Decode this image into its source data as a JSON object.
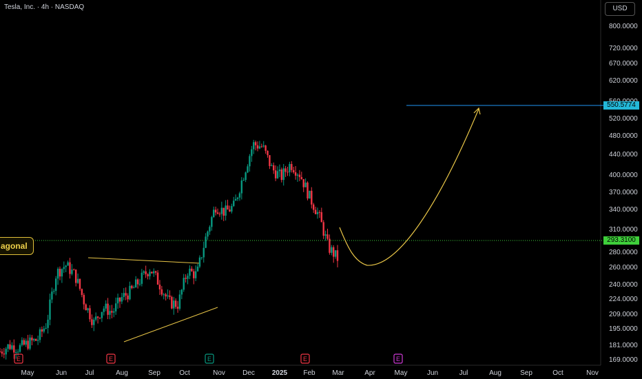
{
  "header": {
    "title": "Tesla, Inc. · 4h · NASDAQ",
    "currency_button": "USD"
  },
  "annotation_tag": "agonal",
  "price_labels": {
    "target": "550.5774",
    "current": "293.3100"
  },
  "colors": {
    "up": "#089981",
    "down": "#f23645",
    "annotation": "#e8c547",
    "target_line": "#2196f3",
    "current_line": "#3ecf3a",
    "text": "#d1d4dc"
  },
  "chart_data": {
    "type": "candlestick",
    "title": "Tesla, Inc. · 4h · NASDAQ",
    "x_tick_labels": [
      "May",
      "Jun",
      "Jul",
      "Aug",
      "Sep",
      "Oct",
      "Nov",
      "Dec",
      "2025",
      "Feb",
      "Mar",
      "Apr",
      "May",
      "Jun",
      "Jul",
      "Aug",
      "Sep",
      "Oct",
      "Nov"
    ],
    "y_tick_labels": [
      "800.0000",
      "720.0000",
      "670.0000",
      "620.0000",
      "560.0000",
      "520.0000",
      "480.0000",
      "440.0000",
      "400.0000",
      "370.0000",
      "340.0000",
      "310.0000",
      "280.0000",
      "260.0000",
      "240.0000",
      "224.0000",
      "209.0000",
      "195.0000",
      "181.0000",
      "169.0000"
    ],
    "y_scale": "log",
    "approx_close_series": [
      {
        "x": "Apr",
        "y": 175
      },
      {
        "x": "May",
        "y": 180
      },
      {
        "x": "May",
        "y": 178
      },
      {
        "x": "Jun",
        "y": 182
      },
      {
        "x": "Jun",
        "y": 185
      },
      {
        "x": "Jun",
        "y": 200
      },
      {
        "x": "Jul",
        "y": 252
      },
      {
        "x": "Jul",
        "y": 262
      },
      {
        "x": "Jul",
        "y": 250
      },
      {
        "x": "Jul",
        "y": 220
      },
      {
        "x": "Aug",
        "y": 200
      },
      {
        "x": "Aug",
        "y": 215
      },
      {
        "x": "Aug",
        "y": 210
      },
      {
        "x": "Sep",
        "y": 225
      },
      {
        "x": "Sep",
        "y": 232
      },
      {
        "x": "Sep",
        "y": 245
      },
      {
        "x": "Oct",
        "y": 258
      },
      {
        "x": "Oct",
        "y": 240
      },
      {
        "x": "Oct",
        "y": 220
      },
      {
        "x": "Oct",
        "y": 218
      },
      {
        "x": "Oct",
        "y": 255
      },
      {
        "x": "Nov",
        "y": 250
      },
      {
        "x": "Nov",
        "y": 300
      },
      {
        "x": "Nov",
        "y": 345
      },
      {
        "x": "Nov",
        "y": 335
      },
      {
        "x": "Dec",
        "y": 345
      },
      {
        "x": "Dec",
        "y": 400
      },
      {
        "x": "Dec",
        "y": 460
      },
      {
        "x": "Dec",
        "y": 455
      },
      {
        "x": "2025",
        "y": 410
      },
      {
        "x": "2025",
        "y": 395
      },
      {
        "x": "2025",
        "y": 420
      },
      {
        "x": "Feb",
        "y": 400
      },
      {
        "x": "Feb",
        "y": 360
      },
      {
        "x": "Feb",
        "y": 330
      },
      {
        "x": "Mar",
        "y": 285
      },
      {
        "x": "Mar",
        "y": 270
      }
    ],
    "earnings_markers": [
      {
        "x": "Apr",
        "label": "E"
      },
      {
        "x": "Jul",
        "label": "E"
      },
      {
        "x": "Oct",
        "label": "E"
      },
      {
        "x": "Jan",
        "label": "E"
      },
      {
        "x": "Apr",
        "label": "E"
      }
    ],
    "horizontal_lines": [
      {
        "name": "target",
        "value": 550.5774
      },
      {
        "name": "current",
        "value": 293.31
      }
    ],
    "projection": "curve down to ~260 in Apr 2025 then up to ~550 by Jul 2025",
    "grid": false
  }
}
